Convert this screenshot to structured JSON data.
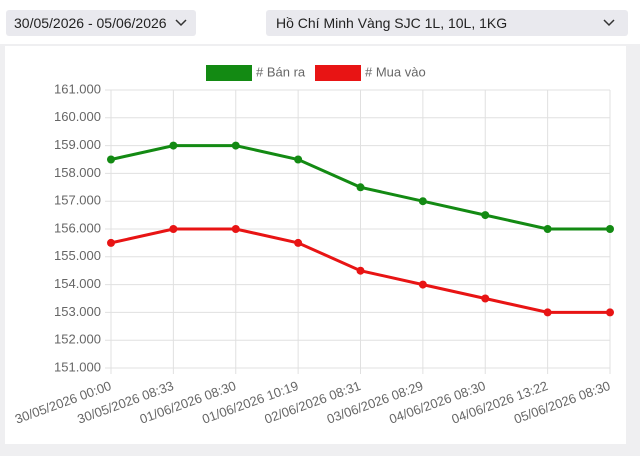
{
  "controls": {
    "date_range": "30/05/2026 - 05/06/2026",
    "product": "Hồ Chí Minh Vàng SJC 1L, 10L, 1KG"
  },
  "chart_data": {
    "type": "line",
    "categories": [
      "30/05/2026 00:00",
      "30/05/2026 08:33",
      "01/06/2026 08:30",
      "01/06/2026 10:19",
      "02/06/2026 08:31",
      "03/06/2026 08:29",
      "04/06/2026 08:30",
      "04/06/2026 13:22",
      "05/06/2026 08:30"
    ],
    "series": [
      {
        "name": "# Bán ra",
        "color": "#138a13",
        "values": [
          158500,
          159000,
          159000,
          158500,
          157500,
          157000,
          156500,
          156000,
          156000
        ]
      },
      {
        "name": "# Mua vào",
        "color": "#e81414",
        "values": [
          155500,
          156000,
          156000,
          155500,
          154500,
          154000,
          153500,
          153000,
          153000
        ]
      }
    ],
    "ylim": [
      151000,
      161000
    ],
    "yticks": [
      {
        "value": 151000,
        "label": "151.000"
      },
      {
        "value": 152000,
        "label": "152.000"
      },
      {
        "value": 153000,
        "label": "153.000"
      },
      {
        "value": 154000,
        "label": "154.000"
      },
      {
        "value": 155000,
        "label": "155.000"
      },
      {
        "value": 156000,
        "label": "156.000"
      },
      {
        "value": 157000,
        "label": "157.000"
      },
      {
        "value": 158000,
        "label": "158.000"
      },
      {
        "value": 159000,
        "label": "159.000"
      },
      {
        "value": 160000,
        "label": "160.000"
      },
      {
        "value": 161000,
        "label": "161.000"
      }
    ],
    "grid": true,
    "legend": "top"
  }
}
